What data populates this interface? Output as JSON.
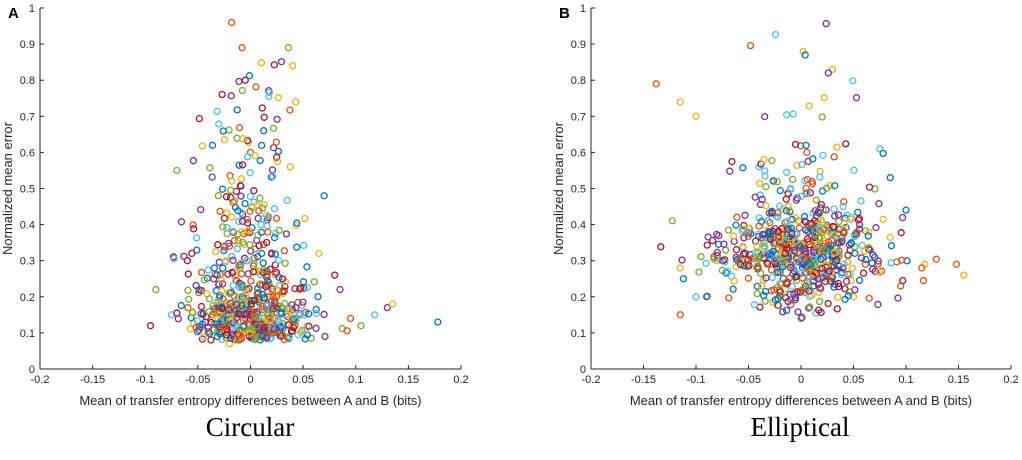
{
  "chart_data": [
    {
      "type": "scatter",
      "panel_label": "A",
      "caption": "Circular",
      "xlabel": "Mean of transfer entropy differences between A and B (bits)",
      "ylabel": "Normalized mean error",
      "xlim": [
        -0.2,
        0.2
      ],
      "ylim": [
        0,
        1
      ],
      "xticks": [
        "-0.2",
        "-0.15",
        "-0.1",
        "-0.05",
        "0",
        "0.05",
        "0.1",
        "0.15",
        "0.2"
      ],
      "yticks": [
        "0",
        "0.1",
        "0.2",
        "0.3",
        "0.4",
        "0.5",
        "0.6",
        "0.7",
        "0.8",
        "0.9",
        "1"
      ],
      "marker": "open-circle",
      "point_count": 700,
      "cluster": {
        "x_center": 0.0,
        "x_spread": 0.028,
        "y_low": 0.05,
        "y_peak_region": [
          0.08,
          0.25
        ]
      },
      "points_sample": [
        [
          -0.018,
          0.96
        ],
        [
          -0.008,
          0.89
        ],
        [
          0.036,
          0.89
        ],
        [
          0.04,
          0.84
        ],
        [
          0.043,
          0.74
        ],
        [
          -0.07,
          0.55
        ],
        [
          0.07,
          0.48
        ],
        [
          0.065,
          0.32
        ],
        [
          0.08,
          0.26
        ],
        [
          0.095,
          0.14
        ],
        [
          0.118,
          0.15
        ],
        [
          0.13,
          0.17
        ],
        [
          0.135,
          0.18
        ],
        [
          0.178,
          0.13
        ],
        [
          0.105,
          0.12
        ],
        [
          -0.09,
          0.22
        ],
        [
          -0.095,
          0.12
        ],
        [
          -0.075,
          0.15
        ],
        [
          -0.06,
          0.3
        ],
        [
          0.085,
          0.22
        ],
        [
          -0.005,
          0.8
        ],
        [
          0.0,
          0.6
        ],
        [
          0.01,
          0.4
        ],
        [
          -0.02,
          0.07
        ],
        [
          0.02,
          0.1
        ]
      ],
      "series": [
        {
          "name": "series-1",
          "color": "#0072BD"
        },
        {
          "name": "series-2",
          "color": "#D95319"
        },
        {
          "name": "series-3",
          "color": "#EDB120"
        },
        {
          "name": "series-4",
          "color": "#7E2F8E"
        },
        {
          "name": "series-5",
          "color": "#77AC30"
        },
        {
          "name": "series-6",
          "color": "#4DBEEE"
        },
        {
          "name": "series-7",
          "color": "#A2142F"
        }
      ]
    },
    {
      "type": "scatter",
      "panel_label": "B",
      "caption": "Elliptical",
      "xlabel": "Mean of transfer entropy differences between A and B (bits)",
      "ylabel": "Normalized mean error",
      "xlim": [
        -0.2,
        0.2
      ],
      "ylim": [
        0,
        1
      ],
      "xticks": [
        "-0.2",
        "-0.15",
        "-0.1",
        "-0.05",
        "0",
        "0.05",
        "0.1",
        "0.15",
        "0.2"
      ],
      "yticks": [
        "0",
        "0.1",
        "0.2",
        "0.3",
        "0.4",
        "0.5",
        "0.6",
        "0.7",
        "0.8",
        "0.9",
        "1"
      ],
      "marker": "open-circle",
      "point_count": 700,
      "cluster": {
        "x_center": 0.0,
        "x_spread": 0.04,
        "y_low": 0.14,
        "y_peak_region": [
          0.22,
          0.4
        ]
      },
      "points_sample": [
        [
          -0.138,
          0.79
        ],
        [
          -0.115,
          0.74
        ],
        [
          -0.1,
          0.7
        ],
        [
          0.002,
          0.88
        ],
        [
          0.004,
          0.87
        ],
        [
          0.03,
          0.83
        ],
        [
          0.026,
          0.82
        ],
        [
          0.148,
          0.29
        ],
        [
          0.155,
          0.26
        ],
        [
          0.118,
          0.29
        ],
        [
          0.115,
          0.28
        ],
        [
          0.095,
          0.23
        ],
        [
          -0.115,
          0.28
        ],
        [
          -0.112,
          0.25
        ],
        [
          -0.1,
          0.2
        ],
        [
          0.1,
          0.44
        ],
        [
          0.085,
          0.53
        ],
        [
          0.075,
          0.61
        ],
        [
          -0.09,
          0.2
        ],
        [
          -0.08,
          0.3
        ],
        [
          0.0,
          0.14
        ],
        [
          -0.01,
          0.5
        ],
        [
          0.02,
          0.38
        ],
        [
          0.05,
          0.2
        ],
        [
          -0.04,
          0.56
        ]
      ],
      "series": [
        {
          "name": "series-1",
          "color": "#0072BD"
        },
        {
          "name": "series-2",
          "color": "#D95319"
        },
        {
          "name": "series-3",
          "color": "#EDB120"
        },
        {
          "name": "series-4",
          "color": "#7E2F8E"
        },
        {
          "name": "series-5",
          "color": "#77AC30"
        },
        {
          "name": "series-6",
          "color": "#4DBEEE"
        },
        {
          "name": "series-7",
          "color": "#A2142F"
        }
      ]
    }
  ]
}
